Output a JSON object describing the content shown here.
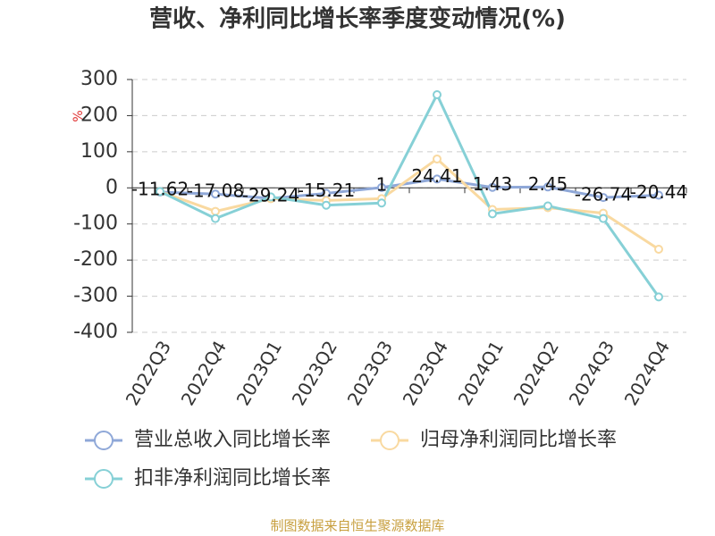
{
  "chart_data": {
    "type": "line",
    "title": "营收、净利同比增长率季度变动情况(%)",
    "y_label": "%",
    "categories": [
      "2022Q3",
      "2022Q4",
      "2023Q1",
      "2023Q2",
      "2023Q3",
      "2023Q4",
      "2024Q1",
      "2024Q2",
      "2024Q3",
      "2024Q4"
    ],
    "series": [
      {
        "name": "营业总收入同比增长率",
        "color": "#8fa8d8",
        "values": [
          -11.62,
          -17.08,
          -29.24,
          -15.21,
          1,
          24.41,
          1.43,
          2.45,
          -26.74,
          -20.44
        ]
      },
      {
        "name": "归母净利润同比增长率",
        "color": "#f9d9a0",
        "values": [
          -10,
          -65,
          -30,
          -35,
          -30,
          80,
          -60,
          -55,
          -70,
          -170
        ]
      },
      {
        "name": "扣非净利润同比增长率",
        "color": "#86d0d6",
        "values": [
          -10,
          -85,
          -25,
          -48,
          -42,
          258,
          -72,
          -50,
          -85,
          -302
        ]
      }
    ],
    "ylim": [
      -400,
      300
    ],
    "yticks": [
      -400,
      -300,
      -200,
      -100,
      0,
      100,
      200,
      300
    ],
    "grid": true,
    "source": "制图数据来自恒生聚源数据库"
  }
}
